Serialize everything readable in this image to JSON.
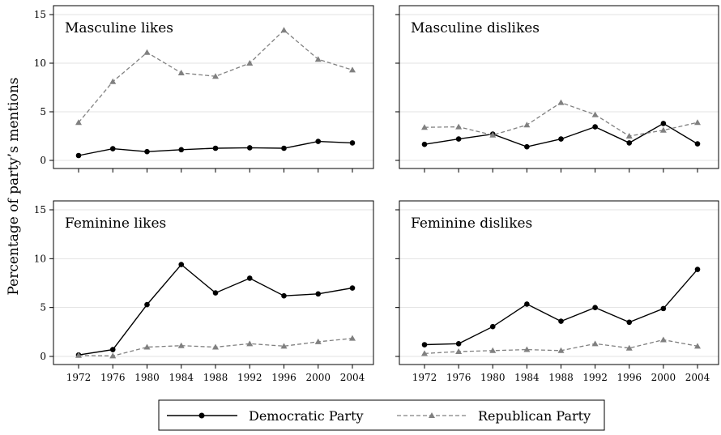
{
  "chart_data": {
    "type": "line",
    "ylabel": "Percentage of party’s mentions",
    "x": [
      1972,
      1976,
      1980,
      1984,
      1988,
      1992,
      1996,
      2000,
      2004
    ],
    "ylim": [
      0,
      15
    ],
    "yticks": [
      0,
      5,
      10,
      15
    ],
    "grid": true,
    "legend": {
      "placement": "bottom-center",
      "entries": [
        "Democratic Party",
        "Republican Party"
      ]
    },
    "series_colors": {
      "democratic": "#000000",
      "republican": "#808080"
    },
    "panels": [
      {
        "title": "Masculine likes",
        "series": [
          {
            "name": "Democratic Party",
            "values": [
              0.5,
              1.2,
              0.9,
              1.1,
              1.25,
              1.3,
              1.25,
              1.95,
              1.8
            ]
          },
          {
            "name": "Republican Party",
            "values": [
              3.9,
              8.1,
              11.1,
              9.0,
              8.65,
              10.0,
              13.4,
              10.4,
              9.3
            ]
          }
        ]
      },
      {
        "title": "Masculine dislikes",
        "series": [
          {
            "name": "Democratic Party",
            "values": [
              1.65,
              2.2,
              2.7,
              1.4,
              2.2,
              3.45,
              1.8,
              3.8,
              1.7
            ]
          },
          {
            "name": "Republican Party",
            "values": [
              3.4,
              3.45,
              2.6,
              3.65,
              5.95,
              4.7,
              2.5,
              3.1,
              3.9
            ]
          }
        ]
      },
      {
        "title": "Feminine likes",
        "series": [
          {
            "name": "Democratic Party",
            "values": [
              0.15,
              0.7,
              5.3,
              9.4,
              6.5,
              8.0,
              6.2,
              6.4,
              7.0
            ]
          },
          {
            "name": "Republican Party",
            "values": [
              0.1,
              0.05,
              0.95,
              1.1,
              0.95,
              1.3,
              1.05,
              1.5,
              1.85
            ]
          }
        ]
      },
      {
        "title": "Feminine dislikes",
        "series": [
          {
            "name": "Democratic Party",
            "values": [
              1.2,
              1.3,
              3.05,
              5.35,
              3.6,
              5.0,
              3.5,
              4.9,
              8.9
            ]
          },
          {
            "name": "Republican Party",
            "values": [
              0.3,
              0.5,
              0.6,
              0.7,
              0.6,
              1.3,
              0.85,
              1.7,
              1.05
            ]
          }
        ]
      }
    ]
  }
}
